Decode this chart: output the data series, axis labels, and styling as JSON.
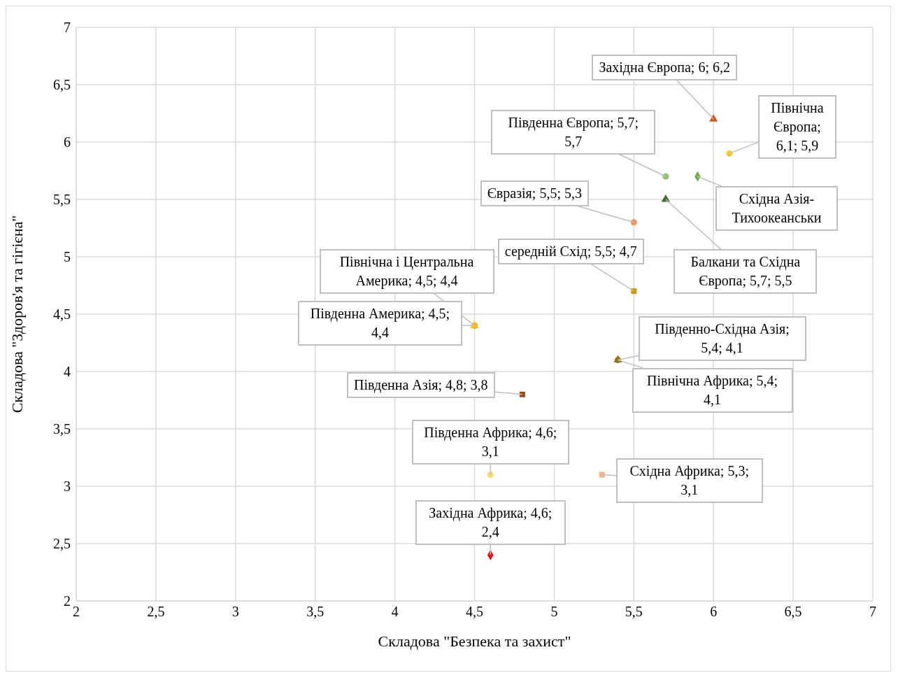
{
  "chart_data": {
    "type": "scatter",
    "xlabel": "Складова \"Безпека та захист\"",
    "ylabel": "Складова \"Здоров'я та гігієна\"",
    "xlim": [
      2,
      7
    ],
    "ylim": [
      2,
      7
    ],
    "xticks": [
      2,
      {
        "value": 2.5,
        "label": "2,5"
      },
      3,
      {
        "value": 3.5,
        "label": "3,5"
      },
      4,
      {
        "value": 4.5,
        "label": "4,5"
      },
      5,
      {
        "value": 5.5,
        "label": "5,5"
      },
      6,
      {
        "value": 6.5,
        "label": "6,5"
      },
      7
    ],
    "yticks": [
      2,
      {
        "value": 2.5,
        "label": "2,5"
      },
      3,
      {
        "value": 3.5,
        "label": "3,5"
      },
      4,
      {
        "value": 4.5,
        "label": "4,5"
      },
      5,
      {
        "value": 5.5,
        "label": "5,5"
      },
      6,
      {
        "value": 6.5,
        "label": "6,5"
      },
      7
    ],
    "grid": true,
    "series": [
      {
        "x": [
          6
        ],
        "values": [
          6.2
        ],
        "value_labels": [
          "Західна Європа; 6; 6,2"
        ],
        "color": "#d05a1c",
        "marker": "triangle"
      },
      {
        "x": [
          6.1
        ],
        "values": [
          5.9
        ],
        "value_labels": [
          "Північна Європа; 6,1; 5,9"
        ],
        "color": "#ffc72c",
        "marker": "circle"
      },
      {
        "x": [
          5.7
        ],
        "values": [
          5.7
        ],
        "value_labels": [
          "Південна Європа; 5,7; 5,7"
        ],
        "color": "#8dc26b",
        "marker": "circle"
      },
      {
        "x": [
          5.9
        ],
        "values": [
          5.7
        ],
        "value_labels": [
          "Східна Азія-Тихоокеанськи"
        ],
        "color": "#70ad47",
        "marker": "diamond"
      },
      {
        "x": [
          5.7
        ],
        "values": [
          5.5
        ],
        "value_labels": [
          "Балкани та Східна Європа; 5,7; 5,5"
        ],
        "color": "#3f6e2a",
        "marker": "triangle"
      },
      {
        "x": [
          5.5
        ],
        "values": [
          5.3
        ],
        "value_labels": [
          "Євразія; 5,5; 5,3"
        ],
        "color": "#f4935c",
        "marker": "circle"
      },
      {
        "x": [
          5.5
        ],
        "values": [
          4.7
        ],
        "value_labels": [
          "середній Схід; 5,5; 4,7"
        ],
        "color": "#c99a06",
        "marker": "square"
      },
      {
        "x": [
          4.5
        ],
        "values": [
          4.4
        ],
        "value_labels": [
          "Північна і Центральна Америка; 4,5; 4,4"
        ],
        "color": "#e07b39",
        "marker": "circle"
      },
      {
        "x": [
          4.5
        ],
        "values": [
          4.4
        ],
        "value_labels": [
          "Південна Америка; 4,5; 4,4"
        ],
        "color": "#ffc000",
        "marker": "triangle"
      },
      {
        "x": [
          5.4
        ],
        "values": [
          4.1
        ],
        "value_labels": [
          "Південно-Східна Азія; 5,4; 4,1"
        ],
        "color": "#548235",
        "marker": "circle"
      },
      {
        "x": [
          5.4
        ],
        "values": [
          4.1
        ],
        "value_labels": [
          "Північна Африка; 5,4; 4,1"
        ],
        "color": "#997300",
        "marker": "triangle"
      },
      {
        "x": [
          4.8
        ],
        "values": [
          3.8
        ],
        "value_labels": [
          "Південна Азія; 4,8; 3,8"
        ],
        "color": "#9e480e",
        "marker": "square"
      },
      {
        "x": [
          4.6
        ],
        "values": [
          3.1
        ],
        "value_labels": [
          "Південна Африка; 4,6; 3,1"
        ],
        "color": "#ffd966",
        "marker": "circle"
      },
      {
        "x": [
          5.3
        ],
        "values": [
          3.1
        ],
        "value_labels": [
          "Східна Африка; 5,3; 3,1"
        ],
        "color": "#f4b183",
        "marker": "square"
      },
      {
        "x": [
          4.6
        ],
        "values": [
          2.4
        ],
        "value_labels": [
          "Західна Африка; 4,6; 2,4"
        ],
        "color": "#ff0000",
        "marker": "diamond"
      }
    ]
  }
}
